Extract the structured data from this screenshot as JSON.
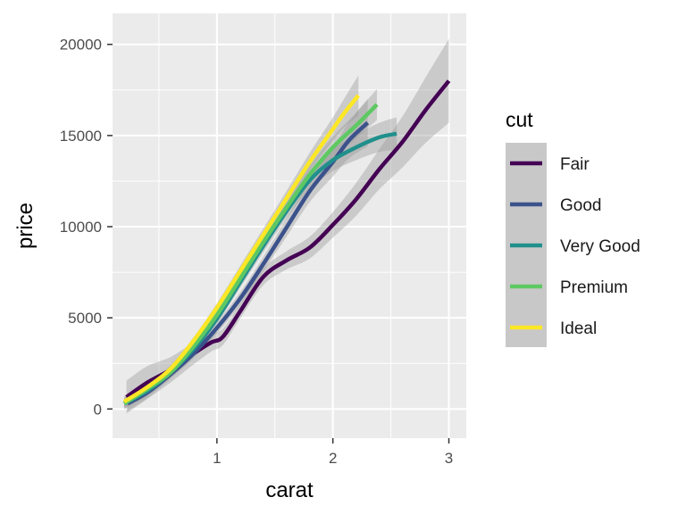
{
  "chart_data": {
    "type": "line",
    "title": "",
    "xlabel": "carat",
    "ylabel": "price",
    "xlim": [
      0.1,
      3.15
    ],
    "ylim": [
      -1600,
      21700
    ],
    "x_ticks": [
      1,
      2,
      3
    ],
    "x_tick_labels": [
      "1",
      "2",
      "3"
    ],
    "x_minor_ticks": [
      0.5,
      1.5,
      2.5
    ],
    "y_ticks": [
      0,
      5000,
      10000,
      15000,
      20000
    ],
    "y_tick_labels": [
      "0",
      "5000",
      "10000",
      "15000",
      "20000"
    ],
    "y_minor_ticks": [
      2500,
      7500,
      12500,
      17500
    ],
    "grid": true,
    "legend": {
      "title": "cut",
      "position": "right"
    },
    "series": [
      {
        "name": "Fair",
        "color": "#440154",
        "x": [
          0.22,
          0.4,
          0.6,
          0.8,
          0.95,
          1.05,
          1.2,
          1.4,
          1.6,
          1.8,
          2.0,
          2.2,
          2.4,
          2.6,
          2.8,
          3.0
        ],
        "y": [
          650,
          1450,
          2150,
          3050,
          3650,
          3950,
          5350,
          7250,
          8150,
          8850,
          10100,
          11500,
          13150,
          14650,
          16400,
          18000
        ],
        "se": [
          900,
          900,
          700,
          600,
          500,
          450,
          400,
          450,
          500,
          600,
          700,
          900,
          1100,
          1400,
          1800,
          2300
        ]
      },
      {
        "name": "Good",
        "color": "#3b528b",
        "x": [
          0.23,
          0.4,
          0.6,
          0.8,
          1.0,
          1.2,
          1.4,
          1.6,
          1.8,
          2.0,
          2.14,
          2.3
        ],
        "y": [
          300,
          900,
          1900,
          3050,
          4450,
          6050,
          7950,
          9950,
          11950,
          13550,
          14750,
          15700
        ],
        "se": [
          400,
          300,
          250,
          250,
          300,
          350,
          400,
          500,
          600,
          800,
          1000,
          1300
        ]
      },
      {
        "name": "Very Good",
        "color": "#21908c",
        "x": [
          0.2,
          0.4,
          0.6,
          0.8,
          1.0,
          1.2,
          1.4,
          1.6,
          1.8,
          2.0,
          2.2,
          2.4,
          2.55
        ],
        "y": [
          300,
          1000,
          2000,
          3300,
          4950,
          6950,
          8950,
          10850,
          12550,
          13650,
          14350,
          14900,
          15100
        ],
        "se": [
          300,
          250,
          200,
          200,
          250,
          300,
          350,
          400,
          500,
          600,
          700,
          800,
          900
        ]
      },
      {
        "name": "Premium",
        "color": "#5ec962",
        "x": [
          0.2,
          0.4,
          0.6,
          0.8,
          1.0,
          1.2,
          1.4,
          1.6,
          1.8,
          2.0,
          2.2,
          2.38
        ],
        "y": [
          300,
          1100,
          2000,
          3450,
          5150,
          7150,
          9150,
          11050,
          12850,
          14350,
          15550,
          16700
        ],
        "se": [
          300,
          250,
          200,
          200,
          250,
          300,
          350,
          400,
          500,
          600,
          700,
          850
        ]
      },
      {
        "name": "Ideal",
        "color": "#fde725",
        "x": [
          0.2,
          0.4,
          0.6,
          0.8,
          1.0,
          1.2,
          1.4,
          1.6,
          1.8,
          2.0,
          2.1,
          2.22
        ],
        "y": [
          400,
          1200,
          2200,
          3750,
          5550,
          7550,
          9550,
          11550,
          13550,
          15350,
          16250,
          17200
        ],
        "se": [
          300,
          250,
          200,
          200,
          250,
          300,
          350,
          400,
          500,
          650,
          800,
          1100
        ]
      }
    ]
  }
}
